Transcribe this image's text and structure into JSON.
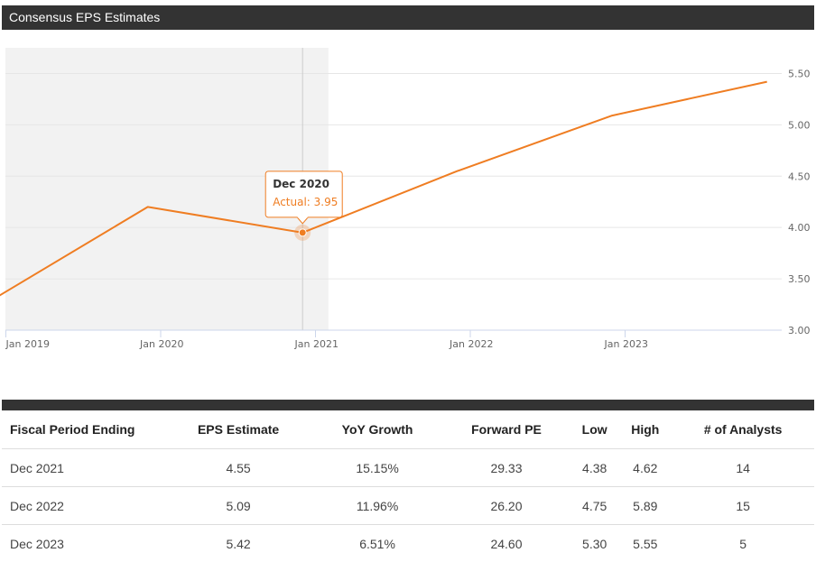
{
  "header": {
    "title": "Consensus EPS Estimates"
  },
  "chart_data": {
    "type": "line",
    "x_ticks": [
      "Jan 2019",
      "Jan 2020",
      "Jan 2021",
      "Jan 2022",
      "Jan 2023"
    ],
    "y_ticks": [
      "3.00",
      "3.50",
      "4.00",
      "4.50",
      "5.00",
      "5.50"
    ],
    "ylim": [
      3.0,
      5.75
    ],
    "series": [
      {
        "points": [
          {
            "x": "Dec 2018",
            "y": 3.3
          },
          {
            "x": "Dec 2019",
            "y": 4.2
          },
          {
            "x": "Dec 2020",
            "y": 3.95
          },
          {
            "x": "Dec 2021",
            "y": 4.55
          },
          {
            "x": "Dec 2022",
            "y": 5.09
          },
          {
            "x": "Dec 2023",
            "y": 5.42
          }
        ]
      }
    ],
    "actual_shaded_until": "Feb 2021",
    "line_color": "#ef7d22",
    "tooltip": {
      "title": "Dec 2020",
      "text": "Actual: 3.95"
    }
  },
  "table": {
    "headers": [
      "Fiscal Period Ending",
      "EPS Estimate",
      "YoY Growth",
      "Forward PE",
      "Low",
      "High",
      "# of Analysts"
    ],
    "rows": [
      [
        "Dec 2021",
        "4.55",
        "15.15%",
        "29.33",
        "4.38",
        "4.62",
        "14"
      ],
      [
        "Dec 2022",
        "5.09",
        "11.96%",
        "26.20",
        "4.75",
        "5.89",
        "15"
      ],
      [
        "Dec 2023",
        "5.42",
        "6.51%",
        "24.60",
        "5.30",
        "5.55",
        "5"
      ]
    ]
  }
}
